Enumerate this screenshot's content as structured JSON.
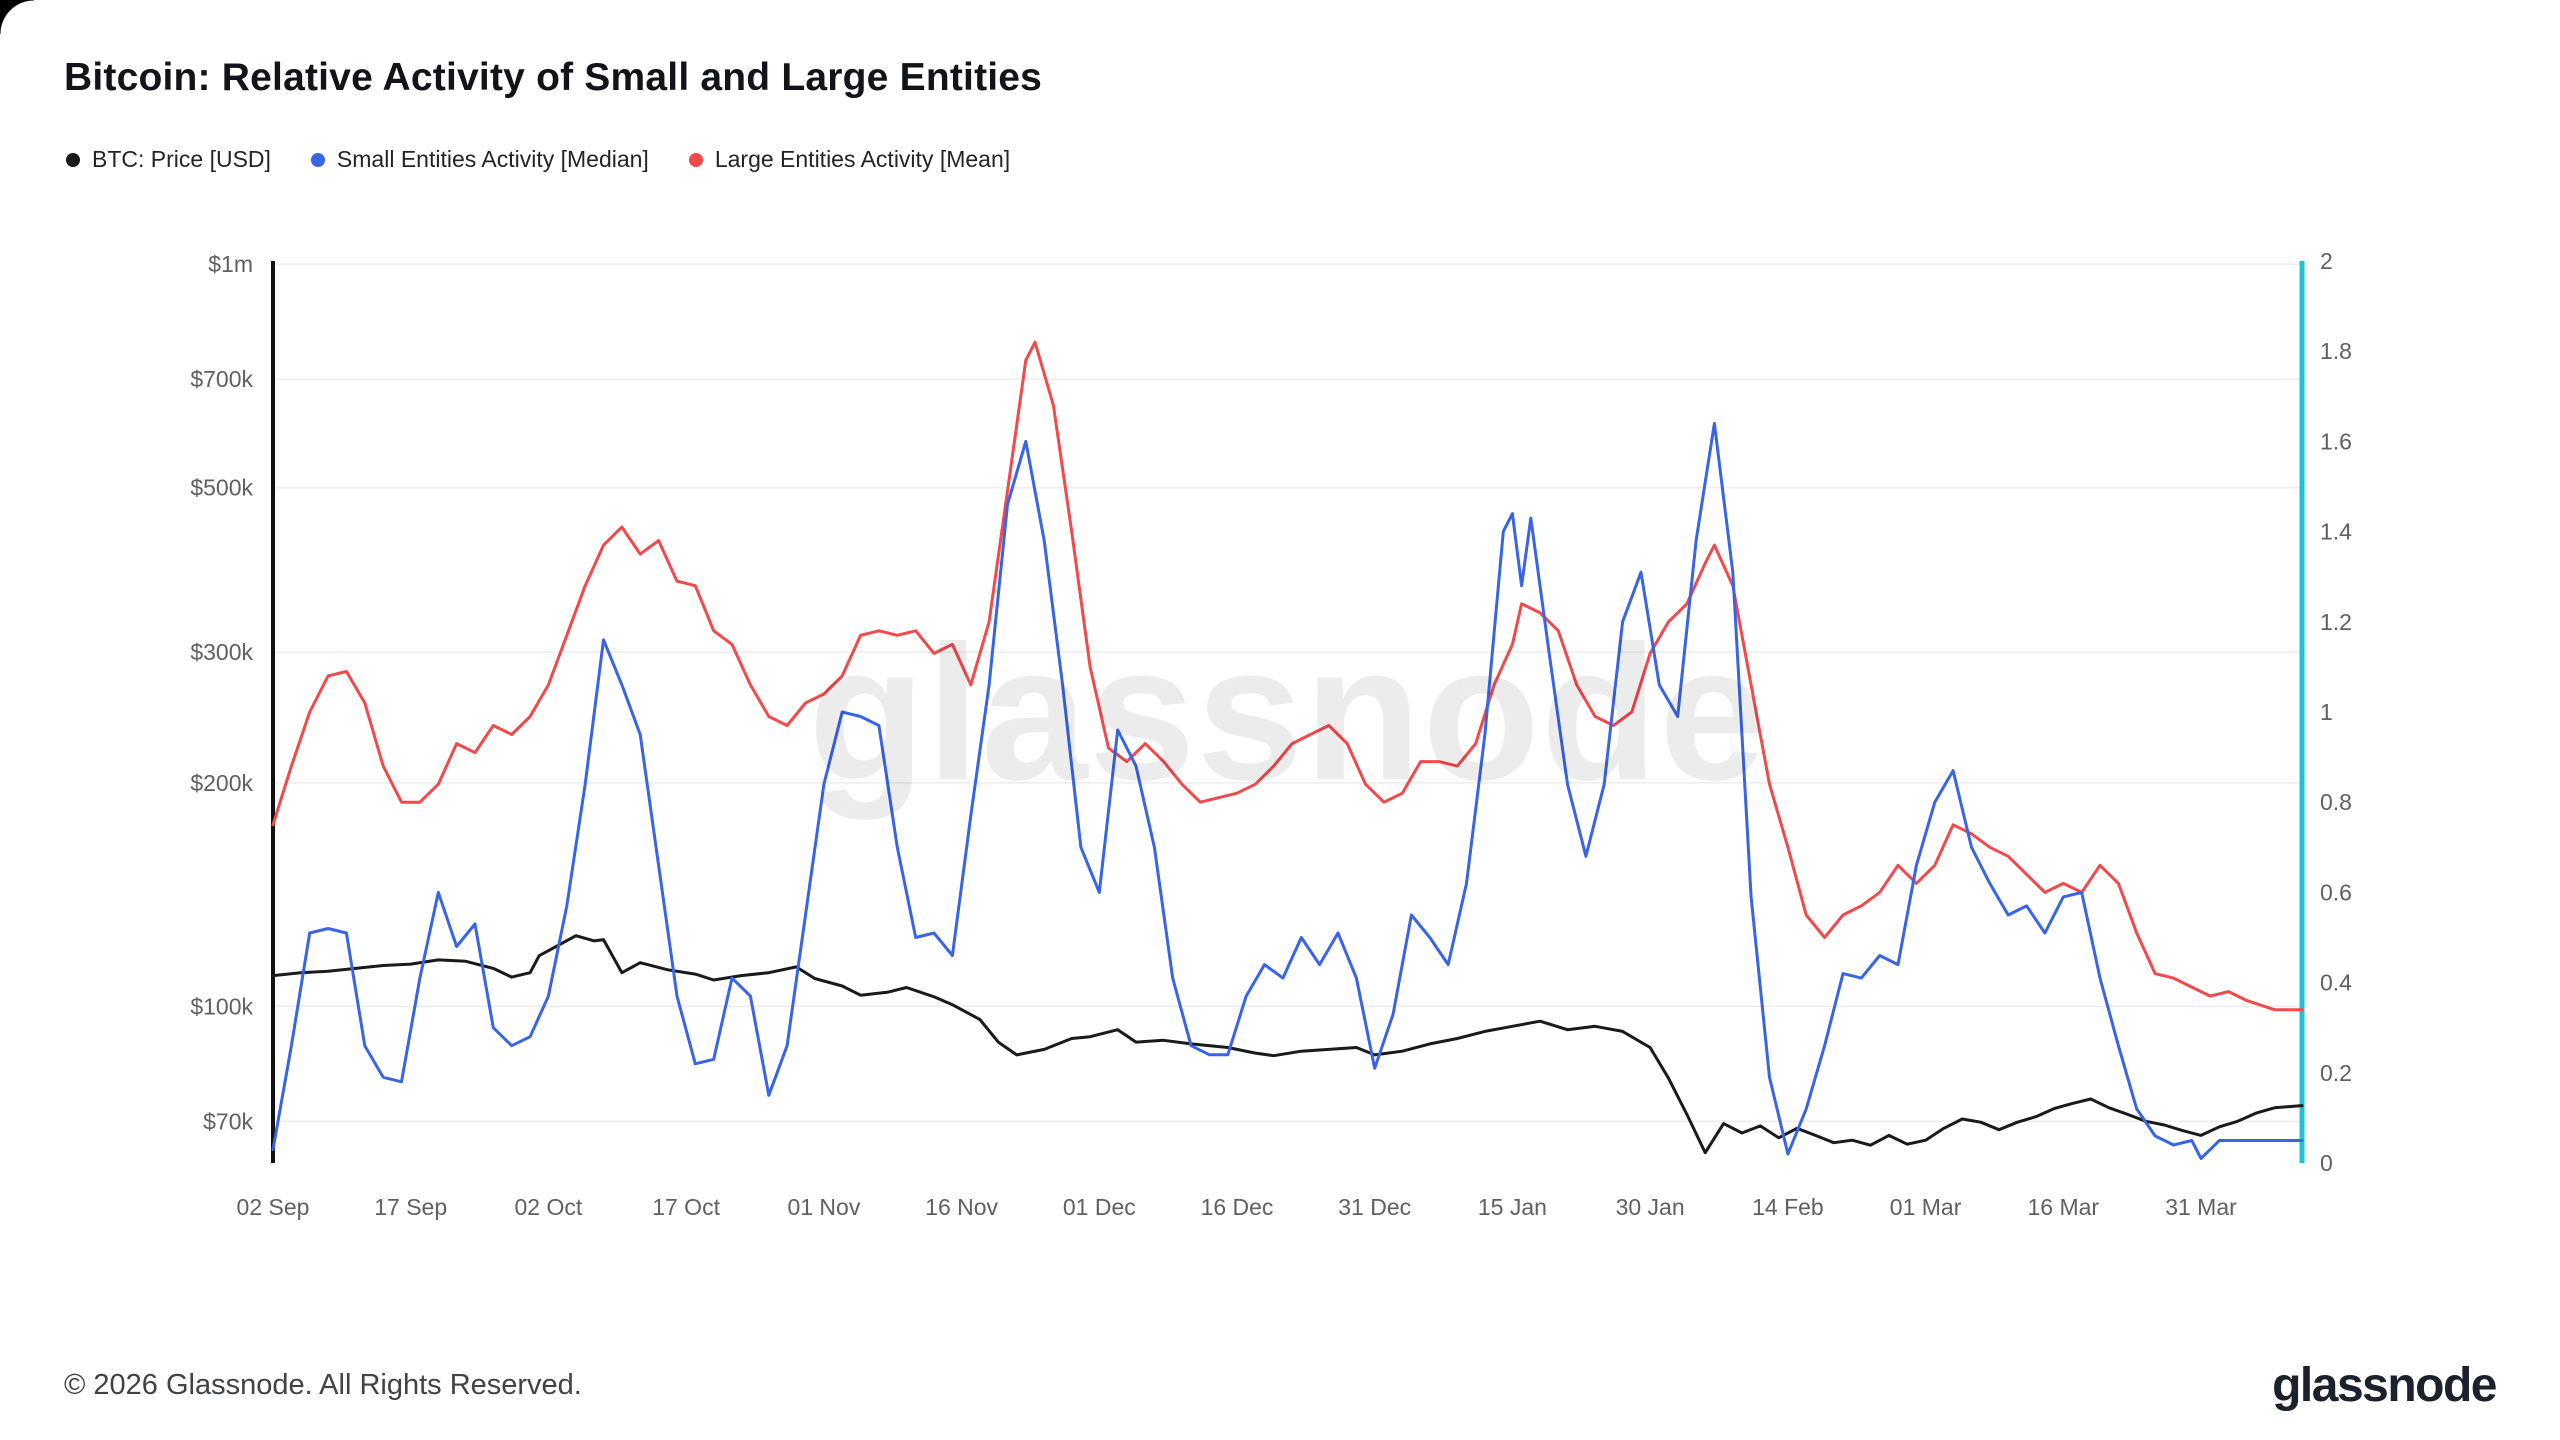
{
  "page": {
    "title": "Bitcoin: Relative Activity of Small and Large Entities",
    "watermark": "glassnode",
    "footer_copyright": "© 2026 Glassnode. All Rights Reserved.",
    "brand_logo": "glassnode"
  },
  "legend": {
    "items": [
      {
        "label": "BTC: Price [USD]",
        "color": "#1a1a1a"
      },
      {
        "label": "Small Entities Activity [Median]",
        "color": "#3a64e6"
      },
      {
        "label": "Large Entities Activity [Mean]",
        "color": "#f2494d"
      }
    ]
  },
  "chart_data": {
    "type": "line",
    "title": "Bitcoin: Relative Activity of Small and Large Entities",
    "grid": "horizontal",
    "legend_position": "top-left",
    "x_unit": "days since 02 Sep",
    "x_range_days": [
      0,
      221
    ],
    "x_ticks": [
      {
        "label": "02 Sep",
        "day": 0
      },
      {
        "label": "17 Sep",
        "day": 15
      },
      {
        "label": "02 Oct",
        "day": 30
      },
      {
        "label": "17 Oct",
        "day": 45
      },
      {
        "label": "01 Nov",
        "day": 60
      },
      {
        "label": "16 Nov",
        "day": 75
      },
      {
        "label": "01 Dec",
        "day": 90
      },
      {
        "label": "16 Dec",
        "day": 105
      },
      {
        "label": "31 Dec",
        "day": 120
      },
      {
        "label": "15 Jan",
        "day": 135
      },
      {
        "label": "30 Jan",
        "day": 150
      },
      {
        "label": "14 Feb",
        "day": 165
      },
      {
        "label": "01 Mar",
        "day": 180
      },
      {
        "label": "16 Mar",
        "day": 195
      },
      {
        "label": "31 Mar",
        "day": 210
      }
    ],
    "left_axis": {
      "scale": "log",
      "unit": "USD",
      "range": [
        61500,
        1010000
      ],
      "axis_line_color": "#111111",
      "ticks": [
        {
          "label": "$1m",
          "value": 1000000
        },
        {
          "label": "$700k",
          "value": 700000
        },
        {
          "label": "$500k",
          "value": 500000
        },
        {
          "label": "$300k",
          "value": 300000
        },
        {
          "label": "$200k",
          "value": 200000
        },
        {
          "label": "$100k",
          "value": 100000
        },
        {
          "label": "$70k",
          "value": 70000
        }
      ]
    },
    "right_axis": {
      "scale": "linear",
      "range": [
        0,
        2
      ],
      "axis_line_color": "#1fc1d4",
      "ticks": [
        {
          "label": "2",
          "value": 2
        },
        {
          "label": "1.8",
          "value": 1.8
        },
        {
          "label": "1.6",
          "value": 1.6
        },
        {
          "label": "1.4",
          "value": 1.4
        },
        {
          "label": "1.2",
          "value": 1.2
        },
        {
          "label": "1",
          "value": 1
        },
        {
          "label": "0.8",
          "value": 0.8
        },
        {
          "label": "0.6",
          "value": 0.6
        },
        {
          "label": "0.4",
          "value": 0.4
        },
        {
          "label": "0.2",
          "value": 0.2
        },
        {
          "label": "0",
          "value": 0
        }
      ]
    },
    "series": [
      {
        "name": "BTC: Price [USD]",
        "axis": "left",
        "color": "#1a1a1a",
        "x": [
          0,
          3,
          6,
          9,
          12,
          15,
          18,
          21,
          24,
          26,
          28,
          29,
          33,
          35,
          36,
          38,
          40,
          43,
          46,
          48,
          51,
          54,
          57,
          59,
          62,
          64,
          67,
          69,
          72,
          74,
          77,
          79,
          81,
          84,
          87,
          89,
          92,
          94,
          97,
          100,
          104,
          107,
          109,
          112,
          115,
          118,
          120,
          123,
          126,
          129,
          132,
          135,
          138,
          141,
          144,
          147,
          150,
          152,
          154,
          156,
          158,
          160,
          162,
          164,
          166,
          168,
          170,
          172,
          174,
          176,
          178,
          180,
          182,
          184,
          186,
          188,
          190,
          192,
          194,
          196,
          198,
          200,
          202,
          204,
          206,
          208,
          210,
          212,
          214,
          216,
          218,
          221
        ],
        "values": [
          110000,
          111000,
          111500,
          112500,
          113500,
          114000,
          115500,
          115000,
          112500,
          109500,
          111000,
          117000,
          124500,
          122500,
          123000,
          111000,
          114500,
          112000,
          110500,
          108500,
          110000,
          111000,
          113000,
          109000,
          106500,
          103500,
          104500,
          106000,
          103000,
          100500,
          96000,
          89500,
          86000,
          87500,
          90500,
          91000,
          93000,
          89500,
          90000,
          89000,
          88000,
          86500,
          85800,
          87000,
          87500,
          88000,
          86000,
          87000,
          89000,
          90500,
          92500,
          94000,
          95500,
          93000,
          94000,
          92500,
          88000,
          80000,
          71500,
          63500,
          69500,
          67500,
          69000,
          66500,
          68500,
          67000,
          65500,
          66000,
          65000,
          67000,
          65200,
          66000,
          68500,
          70500,
          69800,
          68200,
          69800,
          71000,
          72800,
          74000,
          75000,
          73000,
          71500,
          70000,
          69200,
          68000,
          67000,
          68800,
          70000,
          71800,
          73000,
          73500
        ]
      },
      {
        "name": "Small Entities Activity [Median]",
        "axis": "right",
        "color": "#3a64e6",
        "x": [
          0,
          2,
          4,
          6,
          8,
          10,
          12,
          14,
          16,
          18,
          20,
          22,
          24,
          26,
          28,
          30,
          32,
          34,
          36,
          38,
          40,
          42,
          44,
          46,
          48,
          50,
          52,
          54,
          56,
          58,
          60,
          62,
          64,
          66,
          68,
          70,
          72,
          74,
          76,
          78,
          80,
          82,
          84,
          86,
          88,
          90,
          92,
          94,
          96,
          98,
          100,
          102,
          104,
          106,
          108,
          110,
          112,
          114,
          116,
          118,
          120,
          122,
          124,
          126,
          128,
          130,
          132,
          134,
          135,
          136,
          137,
          139,
          141,
          143,
          145,
          147,
          149,
          151,
          153,
          155,
          157,
          159,
          161,
          163,
          165,
          167,
          169,
          171,
          173,
          175,
          177,
          179,
          181,
          183,
          185,
          187,
          189,
          191,
          193,
          195,
          197,
          199,
          201,
          203,
          205,
          207,
          209,
          210,
          212,
          214,
          216,
          218,
          221
        ],
        "values": [
          0.03,
          0.26,
          0.51,
          0.52,
          0.51,
          0.26,
          0.19,
          0.18,
          0.41,
          0.6,
          0.48,
          0.53,
          0.3,
          0.26,
          0.28,
          0.37,
          0.57,
          0.84,
          1.16,
          1.06,
          0.95,
          0.66,
          0.37,
          0.22,
          0.23,
          0.41,
          0.37,
          0.15,
          0.26,
          0.55,
          0.84,
          1.0,
          0.99,
          0.97,
          0.7,
          0.5,
          0.51,
          0.46,
          0.77,
          1.06,
          1.46,
          1.6,
          1.38,
          1.06,
          0.7,
          0.6,
          0.96,
          0.88,
          0.7,
          0.41,
          0.26,
          0.24,
          0.24,
          0.37,
          0.44,
          0.41,
          0.5,
          0.44,
          0.51,
          0.41,
          0.21,
          0.33,
          0.55,
          0.5,
          0.44,
          0.62,
          0.95,
          1.4,
          1.44,
          1.28,
          1.43,
          1.13,
          0.84,
          0.68,
          0.84,
          1.2,
          1.31,
          1.06,
          0.99,
          1.38,
          1.64,
          1.31,
          0.59,
          0.19,
          0.02,
          0.12,
          0.26,
          0.42,
          0.41,
          0.46,
          0.44,
          0.66,
          0.8,
          0.87,
          0.7,
          0.62,
          0.55,
          0.57,
          0.51,
          0.59,
          0.6,
          0.41,
          0.26,
          0.12,
          0.06,
          0.04,
          0.05,
          0.01,
          0.05,
          0.05,
          0.05,
          0.05,
          0.05
        ]
      },
      {
        "name": "Large Entities Activity [Mean]",
        "axis": "right",
        "color": "#f2494d",
        "x": [
          0,
          2,
          4,
          6,
          8,
          10,
          12,
          14,
          16,
          18,
          20,
          22,
          24,
          26,
          28,
          30,
          32,
          34,
          36,
          38,
          40,
          42,
          44,
          46,
          48,
          50,
          52,
          54,
          56,
          58,
          60,
          62,
          64,
          66,
          68,
          70,
          72,
          74,
          76,
          78,
          80,
          82,
          83,
          85,
          87,
          89,
          91,
          93,
          95,
          97,
          99,
          101,
          103,
          105,
          107,
          109,
          111,
          113,
          115,
          117,
          119,
          121,
          123,
          125,
          127,
          129,
          131,
          133,
          135,
          136,
          138,
          140,
          142,
          144,
          146,
          148,
          150,
          152,
          154,
          156,
          157,
          159,
          161,
          163,
          165,
          167,
          169,
          171,
          173,
          175,
          177,
          179,
          181,
          183,
          185,
          187,
          189,
          191,
          193,
          195,
          197,
          199,
          201,
          203,
          205,
          207,
          209,
          211,
          213,
          215,
          218,
          221
        ],
        "values": [
          0.75,
          0.88,
          1.0,
          1.08,
          1.09,
          1.02,
          0.88,
          0.8,
          0.8,
          0.84,
          0.93,
          0.91,
          0.97,
          0.95,
          0.99,
          1.06,
          1.17,
          1.28,
          1.37,
          1.41,
          1.35,
          1.38,
          1.29,
          1.28,
          1.18,
          1.15,
          1.06,
          0.99,
          0.97,
          1.02,
          1.04,
          1.08,
          1.17,
          1.18,
          1.17,
          1.18,
          1.13,
          1.15,
          1.06,
          1.2,
          1.49,
          1.78,
          1.82,
          1.68,
          1.4,
          1.1,
          0.92,
          0.89,
          0.93,
          0.89,
          0.84,
          0.8,
          0.81,
          0.82,
          0.84,
          0.88,
          0.93,
          0.95,
          0.97,
          0.93,
          0.84,
          0.8,
          0.82,
          0.89,
          0.89,
          0.88,
          0.93,
          1.06,
          1.15,
          1.24,
          1.22,
          1.18,
          1.06,
          0.99,
          0.97,
          1.0,
          1.13,
          1.2,
          1.24,
          1.33,
          1.37,
          1.28,
          1.06,
          0.84,
          0.7,
          0.55,
          0.5,
          0.55,
          0.57,
          0.6,
          0.66,
          0.62,
          0.66,
          0.75,
          0.73,
          0.7,
          0.68,
          0.64,
          0.6,
          0.62,
          0.6,
          0.66,
          0.62,
          0.51,
          0.42,
          0.41,
          0.39,
          0.37,
          0.38,
          0.36,
          0.34,
          0.34
        ]
      }
    ]
  }
}
